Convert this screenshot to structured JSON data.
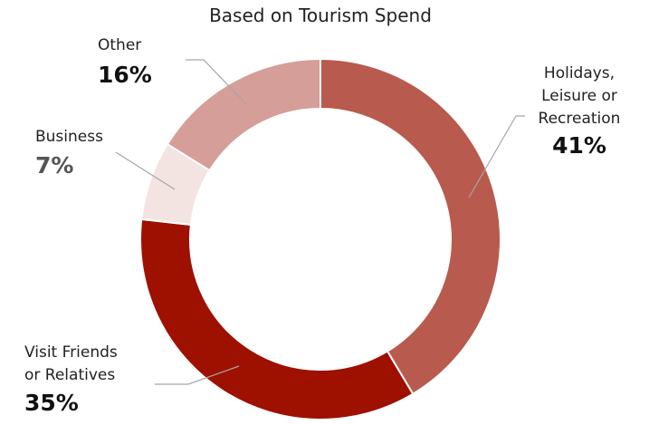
{
  "chart_data": {
    "type": "pie",
    "subtitle": "Based on Tourism Spend",
    "donut": true,
    "start": "12 o'clock, clockwise",
    "slices": [
      {
        "lines": [
          "Holidays,",
          "Leisure or",
          "Recreation"
        ],
        "value": 41,
        "display": "41%",
        "color": "#b85a4d"
      },
      {
        "lines": [
          "Visit Friends",
          "or Relatives"
        ],
        "value": 35,
        "display": "35%",
        "color": "#9e1000"
      },
      {
        "lines": [
          "Business"
        ],
        "value": 7,
        "display": "7%",
        "color": "#f3e4e2"
      },
      {
        "lines": [
          "Other"
        ],
        "value": 16,
        "display": "16%",
        "color": "#d59e98"
      }
    ],
    "label_color": "#222222",
    "value_color": "#111111",
    "business_value_color": "#555555",
    "leader_color": "#a6a6a6"
  }
}
